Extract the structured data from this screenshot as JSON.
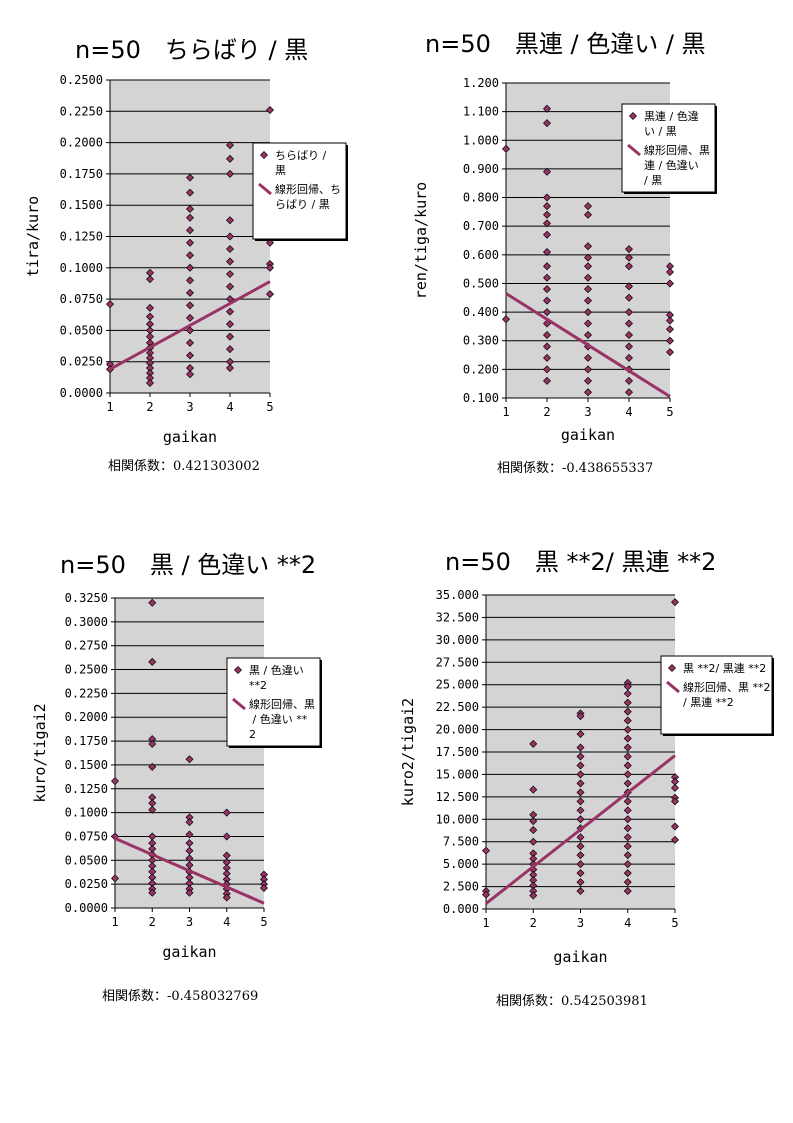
{
  "colors": {
    "plot_bg": "#d4d4d4",
    "grid": "#000000",
    "marker": "#993366",
    "marker_edge": "#000000",
    "line": "#993366",
    "legend_bg": "#ffffff"
  },
  "chart_data": [
    {
      "type": "scatter",
      "title": "n=50　ちらばり / 黒",
      "xlabel": "gaikan",
      "ylabel": "tira/kuro",
      "xlim": [
        1,
        5
      ],
      "ylim": [
        0,
        0.25
      ],
      "x_ticks": [
        "1",
        "2",
        "3",
        "4",
        "5"
      ],
      "y_ticks": [
        "0.0000",
        "0.0250",
        "0.0500",
        "0.0750",
        "0.1000",
        "0.1250",
        "0.1500",
        "0.1750",
        "0.2000",
        "0.2250",
        "0.2500"
      ],
      "grid": "horizontal",
      "legend_position": "right",
      "series": [
        {
          "name": "ちらばり / 黒",
          "kind": "markers",
          "points": [
            [
              1,
              0.071
            ],
            [
              1,
              0.023
            ],
            [
              1,
              0.019
            ],
            [
              2,
              0.096
            ],
            [
              2,
              0.091
            ],
            [
              2,
              0.068
            ],
            [
              2,
              0.061
            ],
            [
              2,
              0.055
            ],
            [
              2,
              0.05
            ],
            [
              2,
              0.045
            ],
            [
              2,
              0.04
            ],
            [
              2,
              0.036
            ],
            [
              2,
              0.032
            ],
            [
              2,
              0.028
            ],
            [
              2,
              0.024
            ],
            [
              2,
              0.02
            ],
            [
              2,
              0.016
            ],
            [
              2,
              0.012
            ],
            [
              2,
              0.008
            ],
            [
              3,
              0.172
            ],
            [
              3,
              0.16
            ],
            [
              3,
              0.147
            ],
            [
              3,
              0.14
            ],
            [
              3,
              0.13
            ],
            [
              3,
              0.12
            ],
            [
              3,
              0.11
            ],
            [
              3,
              0.1
            ],
            [
              3,
              0.09
            ],
            [
              3,
              0.08
            ],
            [
              3,
              0.07
            ],
            [
              3,
              0.06
            ],
            [
              3,
              0.05
            ],
            [
              3,
              0.04
            ],
            [
              3,
              0.03
            ],
            [
              3,
              0.02
            ],
            [
              3,
              0.015
            ],
            [
              4,
              0.198
            ],
            [
              4,
              0.187
            ],
            [
              4,
              0.175
            ],
            [
              4,
              0.138
            ],
            [
              4,
              0.125
            ],
            [
              4,
              0.115
            ],
            [
              4,
              0.105
            ],
            [
              4,
              0.095
            ],
            [
              4,
              0.085
            ],
            [
              4,
              0.075
            ],
            [
              4,
              0.065
            ],
            [
              4,
              0.055
            ],
            [
              4,
              0.045
            ],
            [
              4,
              0.035
            ],
            [
              4,
              0.025
            ],
            [
              4,
              0.02
            ],
            [
              5,
              0.226
            ],
            [
              5,
              0.12
            ],
            [
              5,
              0.103
            ],
            [
              5,
              0.1
            ],
            [
              5,
              0.079
            ]
          ]
        },
        {
          "name": "線形回帰、ちらばり / 黒",
          "kind": "line",
          "points": [
            [
              1,
              0.019
            ],
            [
              5,
              0.089
            ]
          ]
        }
      ],
      "correlation_text": "相関係数：0.421303002"
    },
    {
      "type": "scatter",
      "title": "n=50　黒連 / 色違い / 黒",
      "xlabel": "gaikan",
      "ylabel": "ren/tiga/kuro",
      "xlim": [
        1,
        5
      ],
      "ylim": [
        0.1,
        1.2
      ],
      "x_ticks": [
        "1",
        "2",
        "3",
        "4",
        "5"
      ],
      "y_ticks": [
        "0.100",
        "0.200",
        "0.300",
        "0.400",
        "0.500",
        "0.600",
        "0.700",
        "0.800",
        "0.900",
        "1.000",
        "1.100",
        "1.200"
      ],
      "grid": "horizontal",
      "legend_position": "right",
      "series": [
        {
          "name": "黒連 / 色違い / 黒",
          "kind": "markers",
          "points": [
            [
              1,
              0.97
            ],
            [
              1,
              0.375
            ],
            [
              2,
              1.11
            ],
            [
              2,
              1.06
            ],
            [
              2,
              0.89
            ],
            [
              2,
              0.8
            ],
            [
              2,
              0.77
            ],
            [
              2,
              0.74
            ],
            [
              2,
              0.71
            ],
            [
              2,
              0.67
            ],
            [
              2,
              0.61
            ],
            [
              2,
              0.56
            ],
            [
              2,
              0.52
            ],
            [
              2,
              0.48
            ],
            [
              2,
              0.44
            ],
            [
              2,
              0.4
            ],
            [
              2,
              0.36
            ],
            [
              2,
              0.32
            ],
            [
              2,
              0.28
            ],
            [
              2,
              0.24
            ],
            [
              2,
              0.2
            ],
            [
              2,
              0.16
            ],
            [
              3,
              0.77
            ],
            [
              3,
              0.74
            ],
            [
              3,
              0.63
            ],
            [
              3,
              0.59
            ],
            [
              3,
              0.56
            ],
            [
              3,
              0.52
            ],
            [
              3,
              0.48
            ],
            [
              3,
              0.44
            ],
            [
              3,
              0.4
            ],
            [
              3,
              0.36
            ],
            [
              3,
              0.32
            ],
            [
              3,
              0.28
            ],
            [
              3,
              0.24
            ],
            [
              3,
              0.2
            ],
            [
              3,
              0.16
            ],
            [
              3,
              0.12
            ],
            [
              4,
              0.62
            ],
            [
              4,
              0.59
            ],
            [
              4,
              0.56
            ],
            [
              4,
              0.49
            ],
            [
              4,
              0.45
            ],
            [
              4,
              0.4
            ],
            [
              4,
              0.36
            ],
            [
              4,
              0.32
            ],
            [
              4,
              0.28
            ],
            [
              4,
              0.24
            ],
            [
              4,
              0.2
            ],
            [
              4,
              0.16
            ],
            [
              4,
              0.12
            ],
            [
              5,
              0.56
            ],
            [
              5,
              0.54
            ],
            [
              5,
              0.5
            ],
            [
              5,
              0.39
            ],
            [
              5,
              0.37
            ],
            [
              5,
              0.34
            ],
            [
              5,
              0.3
            ],
            [
              5,
              0.26
            ]
          ]
        },
        {
          "name": "線形回帰、黒連 / 色違い / 黒",
          "kind": "line",
          "points": [
            [
              1,
              0.465
            ],
            [
              5,
              0.105
            ]
          ]
        }
      ],
      "correlation_text": "相関係数：-0.438655337"
    },
    {
      "type": "scatter",
      "title": "n=50　黒 / 色違い **2",
      "xlabel": "gaikan",
      "ylabel": "kuro/tigai2",
      "xlim": [
        1,
        5
      ],
      "ylim": [
        0,
        0.325
      ],
      "x_ticks": [
        "1",
        "2",
        "3",
        "4",
        "5"
      ],
      "y_ticks": [
        "0.0000",
        "0.0250",
        "0.0500",
        "0.0750",
        "0.1000",
        "0.1250",
        "0.1500",
        "0.1750",
        "0.2000",
        "0.2250",
        "0.2500",
        "0.2750",
        "0.3000",
        "0.3250"
      ],
      "grid": "horizontal",
      "legend_position": "right",
      "series": [
        {
          "name": "黒 / 色違い **2",
          "kind": "markers",
          "points": [
            [
              1,
              0.133
            ],
            [
              1,
              0.075
            ],
            [
              1,
              0.031
            ],
            [
              2,
              0.32
            ],
            [
              2,
              0.258
            ],
            [
              2,
              0.177
            ],
            [
              2,
              0.172
            ],
            [
              2,
              0.148
            ],
            [
              2,
              0.116
            ],
            [
              2,
              0.11
            ],
            [
              2,
              0.103
            ],
            [
              2,
              0.075
            ],
            [
              2,
              0.068
            ],
            [
              2,
              0.062
            ],
            [
              2,
              0.056
            ],
            [
              2,
              0.05
            ],
            [
              2,
              0.044
            ],
            [
              2,
              0.038
            ],
            [
              2,
              0.032
            ],
            [
              2,
              0.026
            ],
            [
              2,
              0.02
            ],
            [
              2,
              0.016
            ],
            [
              3,
              0.156
            ],
            [
              3,
              0.095
            ],
            [
              3,
              0.09
            ],
            [
              3,
              0.077
            ],
            [
              3,
              0.068
            ],
            [
              3,
              0.06
            ],
            [
              3,
              0.052
            ],
            [
              3,
              0.045
            ],
            [
              3,
              0.038
            ],
            [
              3,
              0.032
            ],
            [
              3,
              0.026
            ],
            [
              3,
              0.02
            ],
            [
              3,
              0.016
            ],
            [
              4,
              0.1
            ],
            [
              4,
              0.075
            ],
            [
              4,
              0.055
            ],
            [
              4,
              0.048
            ],
            [
              4,
              0.042
            ],
            [
              4,
              0.036
            ],
            [
              4,
              0.03
            ],
            [
              4,
              0.025
            ],
            [
              4,
              0.02
            ],
            [
              4,
              0.015
            ],
            [
              4,
              0.011
            ],
            [
              5,
              0.035
            ],
            [
              5,
              0.03
            ],
            [
              5,
              0.025
            ],
            [
              5,
              0.021
            ]
          ]
        },
        {
          "name": "線形回帰、黒 / 色違い **2",
          "kind": "line",
          "points": [
            [
              1,
              0.073
            ],
            [
              5,
              0.005
            ]
          ]
        }
      ],
      "correlation_text": "相関係数：-0.458032769"
    },
    {
      "type": "scatter",
      "title": "n=50　黒 **2/ 黒連 **2",
      "xlabel": "gaikan",
      "ylabel": "kuro2/tigai2",
      "xlim": [
        1,
        5
      ],
      "ylim": [
        0,
        35
      ],
      "x_ticks": [
        "1",
        "2",
        "3",
        "4",
        "5"
      ],
      "y_ticks": [
        "0.000",
        "2.500",
        "5.000",
        "7.500",
        "10.000",
        "12.500",
        "15.000",
        "17.500",
        "20.000",
        "22.500",
        "25.000",
        "27.500",
        "30.000",
        "32.500",
        "35.000"
      ],
      "grid": "horizontal",
      "legend_position": "right",
      "series": [
        {
          "name": "黒 **2/ 黒連 **2",
          "kind": "markers",
          "points": [
            [
              1,
              6.5
            ],
            [
              1,
              2.0
            ],
            [
              1,
              1.6
            ],
            [
              2,
              18.4
            ],
            [
              2,
              13.3
            ],
            [
              2,
              10.5
            ],
            [
              2,
              9.8
            ],
            [
              2,
              8.8
            ],
            [
              2,
              7.5
            ],
            [
              2,
              6.2
            ],
            [
              2,
              5.6
            ],
            [
              2,
              5.0
            ],
            [
              2,
              4.4
            ],
            [
              2,
              3.8
            ],
            [
              2,
              3.2
            ],
            [
              2,
              2.6
            ],
            [
              2,
              2.0
            ],
            [
              2,
              1.5
            ],
            [
              3,
              21.8
            ],
            [
              3,
              21.5
            ],
            [
              3,
              19.5
            ],
            [
              3,
              18.0
            ],
            [
              3,
              17.0
            ],
            [
              3,
              16.0
            ],
            [
              3,
              15.0
            ],
            [
              3,
              14.0
            ],
            [
              3,
              13.0
            ],
            [
              3,
              12.0
            ],
            [
              3,
              11.0
            ],
            [
              3,
              10.0
            ],
            [
              3,
              9.0
            ],
            [
              3,
              8.0
            ],
            [
              3,
              7.0
            ],
            [
              3,
              6.0
            ],
            [
              3,
              5.0
            ],
            [
              3,
              4.0
            ],
            [
              3,
              3.0
            ],
            [
              3,
              2.0
            ],
            [
              4,
              25.2
            ],
            [
              4,
              24.8
            ],
            [
              4,
              24.0
            ],
            [
              4,
              23.0
            ],
            [
              4,
              22.0
            ],
            [
              4,
              21.0
            ],
            [
              4,
              20.0
            ],
            [
              4,
              19.0
            ],
            [
              4,
              18.0
            ],
            [
              4,
              17.0
            ],
            [
              4,
              16.0
            ],
            [
              4,
              15.0
            ],
            [
              4,
              14.0
            ],
            [
              4,
              13.0
            ],
            [
              4,
              12.0
            ],
            [
              4,
              11.0
            ],
            [
              4,
              10.0
            ],
            [
              4,
              9.0
            ],
            [
              4,
              8.0
            ],
            [
              4,
              7.0
            ],
            [
              4,
              6.0
            ],
            [
              4,
              5.0
            ],
            [
              4,
              4.0
            ],
            [
              4,
              3.0
            ],
            [
              4,
              2.0
            ],
            [
              5,
              34.2
            ],
            [
              5,
              14.7
            ],
            [
              5,
              14.2
            ],
            [
              5,
              13.5
            ],
            [
              5,
              12.4
            ],
            [
              5,
              12.0
            ],
            [
              5,
              9.2
            ],
            [
              5,
              7.7
            ]
          ]
        },
        {
          "name": "線形回帰、黒 **2/ 黒連 **2",
          "kind": "line",
          "points": [
            [
              1,
              0.6
            ],
            [
              5,
              17.1
            ]
          ]
        }
      ],
      "correlation_text": "相関係数：0.542503981"
    }
  ]
}
